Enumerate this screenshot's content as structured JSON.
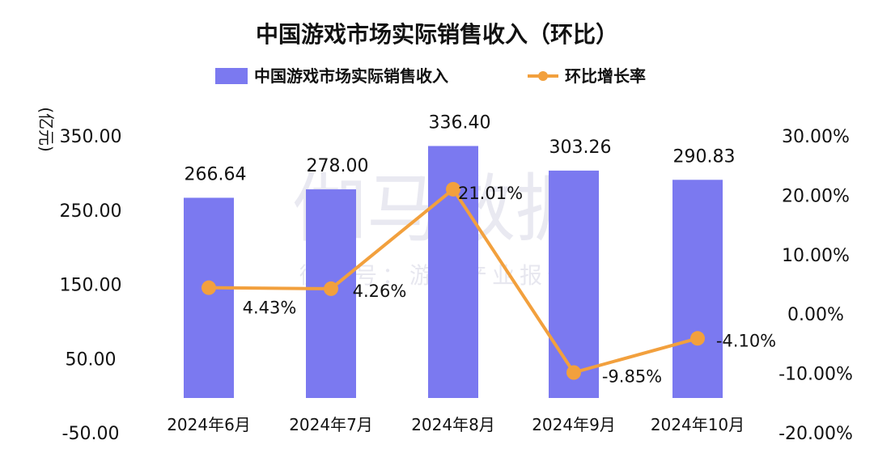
{
  "watermark": {
    "main": "伽马数据",
    "sub": "微信号：游戏产业报告"
  },
  "chart_data": {
    "type": "bar",
    "title": "中国游戏市场实际销售收入（环比）",
    "ylabel": "(亿元)",
    "legend_position": "top",
    "grid": false,
    "categories": [
      "2024年6月",
      "2024年7月",
      "2024年8月",
      "2024年9月",
      "2024年10月"
    ],
    "y_axis": {
      "min": -50,
      "max": 350,
      "ticks": [
        "350.00",
        "250.00",
        "150.00",
        "50.00",
        "-50.00"
      ],
      "tick_values": [
        350,
        250,
        150,
        50,
        -50
      ]
    },
    "y2_axis": {
      "min": -20,
      "max": 30,
      "ticks": [
        "30.00%",
        "20.00%",
        "10.00%",
        "0.00%",
        "-10.00%",
        "-20.00%"
      ],
      "tick_values": [
        30,
        20,
        10,
        0,
        -10,
        -20
      ]
    },
    "series": [
      {
        "name": "中国游戏市场实际销售收入",
        "type": "bar",
        "axis": "left",
        "color": "#7b79f0",
        "values": [
          266.64,
          278.0,
          336.4,
          303.26,
          290.83
        ],
        "labels": [
          "266.64",
          "278.00",
          "336.40",
          "303.26",
          "290.83"
        ]
      },
      {
        "name": "环比增长率",
        "type": "line",
        "axis": "right",
        "color": "#f2a03d",
        "values": [
          4.43,
          4.26,
          21.01,
          -9.85,
          -4.1
        ],
        "labels": [
          "4.43%",
          "4.26%",
          "21.01%",
          "-9.85%",
          "-4.10%"
        ]
      }
    ]
  }
}
